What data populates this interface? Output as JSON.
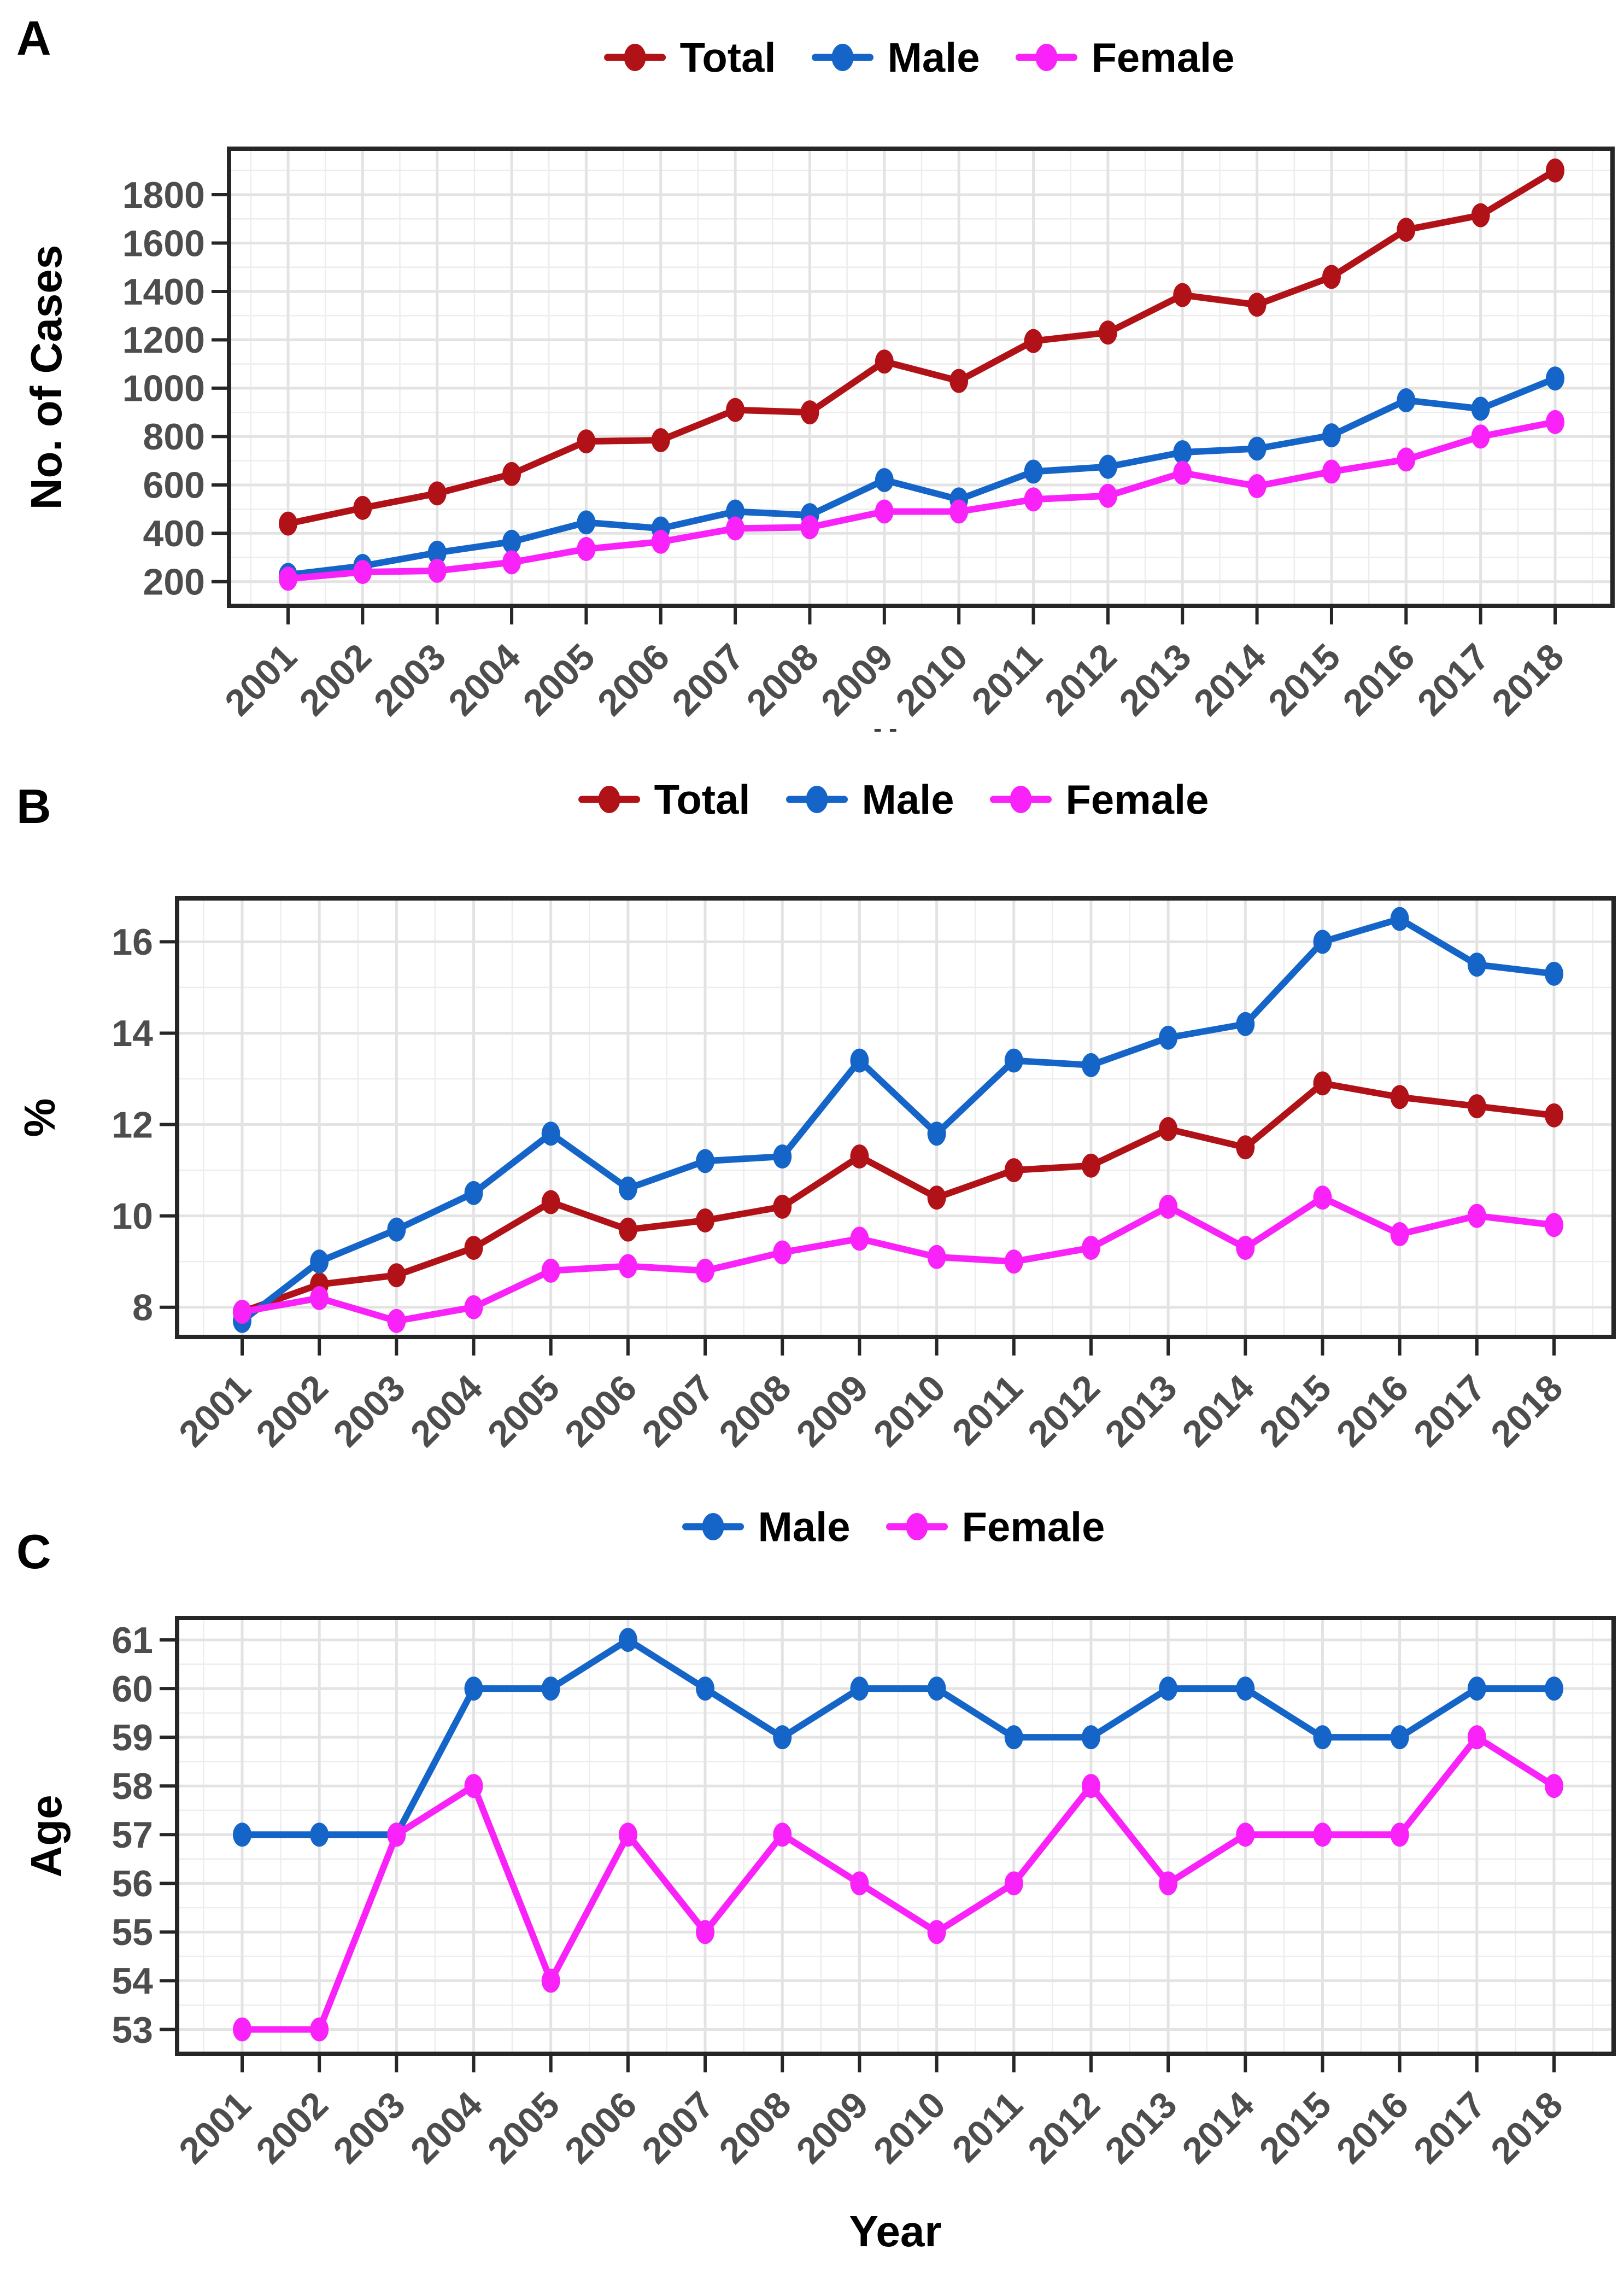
{
  "figure": {
    "x_axis_title": "Year",
    "stray_mark": "- -"
  },
  "colors": {
    "total": "#B11218",
    "male": "#1565C8",
    "female": "#F922F9",
    "border": "#262626",
    "grid_major": "#E3E3E3",
    "grid_minor": "#EDEDED",
    "tick_label": "#4D4D4D"
  },
  "chart_data": [
    {
      "type": "line",
      "panel": "A",
      "title": "",
      "x": [
        2001,
        2002,
        2003,
        2004,
        2005,
        2006,
        2007,
        2008,
        2009,
        2010,
        2011,
        2012,
        2013,
        2014,
        2015,
        2016,
        2017,
        2018
      ],
      "series": [
        {
          "name": "Total",
          "color": "#B11218",
          "values": [
            440,
            505,
            565,
            645,
            780,
            785,
            910,
            900,
            1110,
            1030,
            1195,
            1230,
            1385,
            1345,
            1460,
            1655,
            1715,
            1900
          ]
        },
        {
          "name": "Male",
          "color": "#1565C8",
          "values": [
            228,
            265,
            320,
            365,
            445,
            420,
            490,
            475,
            620,
            540,
            655,
            675,
            735,
            750,
            805,
            950,
            915,
            1040
          ]
        },
        {
          "name": "Female",
          "color": "#F922F9",
          "values": [
            212,
            240,
            245,
            280,
            335,
            365,
            420,
            425,
            490,
            490,
            540,
            555,
            650,
            595,
            655,
            705,
            800,
            860
          ]
        }
      ],
      "xlabel": "",
      "ylabel": "No. of Cases",
      "yticks": [
        200,
        400,
        600,
        800,
        1000,
        1200,
        1400,
        1600,
        1800
      ],
      "yminor": [
        100,
        300,
        500,
        700,
        900,
        1100,
        1300,
        1500,
        1700,
        1900
      ],
      "ylim": [
        100,
        1990
      ],
      "grid": true,
      "legend_position": "top-center"
    },
    {
      "type": "line",
      "panel": "B",
      "title": "",
      "x": [
        2001,
        2002,
        2003,
        2004,
        2005,
        2006,
        2007,
        2008,
        2009,
        2010,
        2011,
        2012,
        2013,
        2014,
        2015,
        2016,
        2017,
        2018
      ],
      "series": [
        {
          "name": "Total",
          "color": "#B11218",
          "values": [
            7.9,
            8.5,
            8.7,
            9.3,
            10.3,
            9.7,
            9.9,
            10.2,
            11.3,
            10.4,
            11.0,
            11.1,
            11.9,
            11.5,
            12.9,
            12.6,
            12.4,
            12.2
          ]
        },
        {
          "name": "Male",
          "color": "#1565C8",
          "values": [
            7.7,
            9.0,
            9.7,
            10.5,
            11.8,
            10.6,
            11.2,
            11.3,
            13.4,
            11.8,
            13.4,
            13.3,
            13.9,
            14.2,
            16.0,
            16.5,
            15.5,
            15.3
          ]
        },
        {
          "name": "Female",
          "color": "#F922F9",
          "values": [
            7.9,
            8.2,
            7.7,
            8.0,
            8.8,
            8.9,
            8.8,
            9.2,
            9.5,
            9.1,
            9.0,
            9.3,
            10.2,
            9.3,
            10.4,
            9.6,
            10.0,
            9.8
          ]
        }
      ],
      "xlabel": "",
      "ylabel": "%",
      "yticks": [
        8,
        10,
        12,
        14,
        16
      ],
      "yminor": [
        9,
        11,
        13,
        15
      ],
      "ylim": [
        7.35,
        16.95
      ],
      "grid": true,
      "legend_position": "top-center"
    },
    {
      "type": "line",
      "panel": "C",
      "title": "",
      "x": [
        2001,
        2002,
        2003,
        2004,
        2005,
        2006,
        2007,
        2008,
        2009,
        2010,
        2011,
        2012,
        2013,
        2014,
        2015,
        2016,
        2017,
        2018
      ],
      "series": [
        {
          "name": "Male",
          "color": "#1565C8",
          "values": [
            57,
            57,
            57,
            60,
            60,
            61,
            60,
            59,
            60,
            60,
            59,
            59,
            60,
            60,
            59,
            59,
            60,
            60
          ]
        },
        {
          "name": "Female",
          "color": "#F922F9",
          "values": [
            53,
            53,
            57,
            58,
            54,
            57,
            55,
            57,
            56,
            55,
            56,
            58,
            56,
            57,
            57,
            57,
            59,
            58
          ]
        }
      ],
      "xlabel": "Year",
      "ylabel": "Age",
      "yticks": [
        53,
        54,
        55,
        56,
        57,
        58,
        59,
        60,
        61
      ],
      "yminor": [
        53.5,
        54.5,
        55.5,
        56.5,
        57.5,
        58.5,
        59.5,
        60.5
      ],
      "ylim": [
        52.5,
        61.45
      ],
      "grid": true,
      "legend_position": "top-center"
    }
  ]
}
